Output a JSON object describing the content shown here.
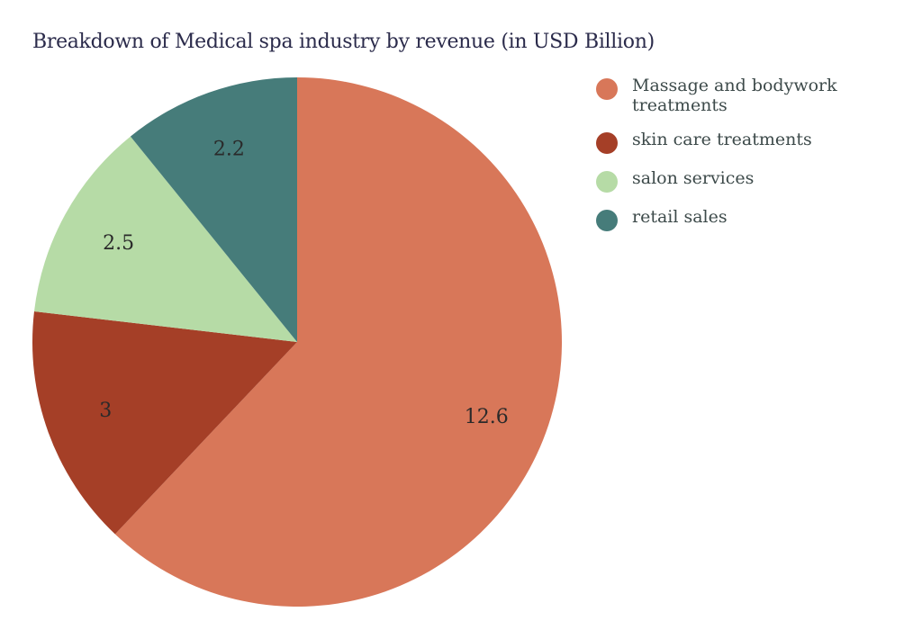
{
  "chart_data": {
    "type": "pie",
    "title": "Breakdown of Medical spa industry by revenue (in USD Billion)",
    "categories": [
      "Massage and bodywork treatments",
      "skin care treatments",
      "salon services",
      "retail sales"
    ],
    "values": [
      12.6,
      3,
      2.5,
      2.2
    ],
    "data_labels": [
      "12.6",
      "3",
      "2.5",
      "2.2"
    ],
    "colors": [
      "#D87759",
      "#A53F27",
      "#B6DBA6",
      "#467C7A"
    ],
    "start_angle": "top",
    "direction": "clockwise",
    "legend_position": "right"
  }
}
